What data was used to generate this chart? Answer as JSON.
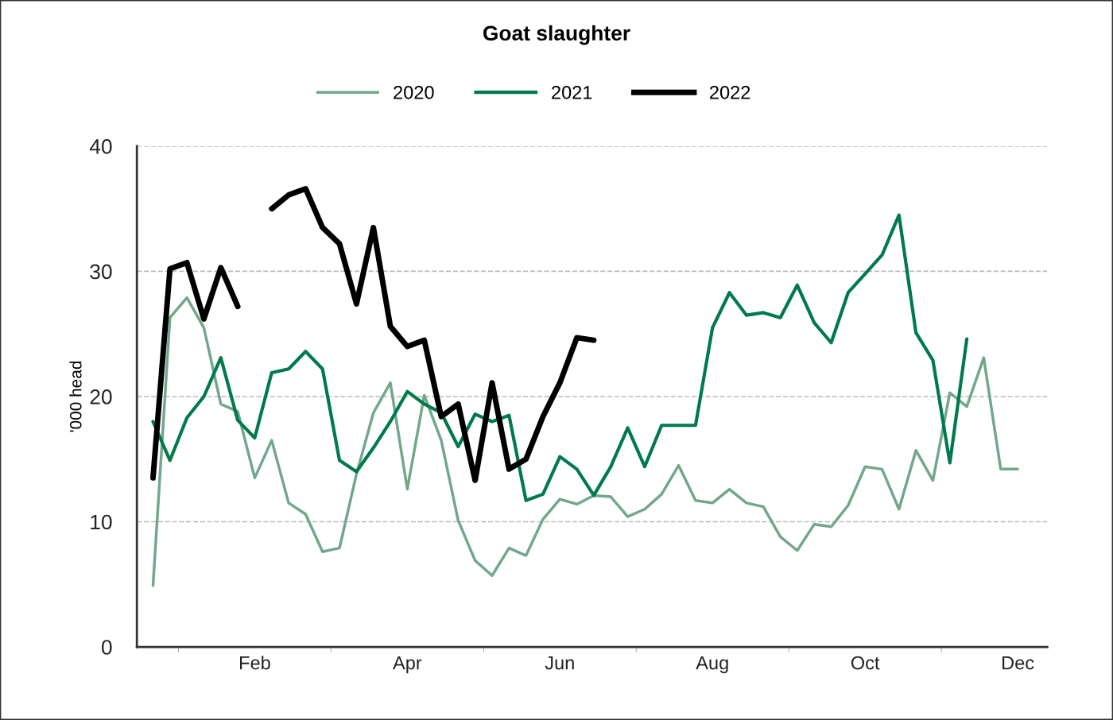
{
  "chart_data": {
    "type": "line",
    "title": "Goat slaughter",
    "ylabel": "'000 head",
    "categories": [
      null,
      null,
      null,
      null,
      null,
      null,
      "Feb",
      null,
      null,
      null,
      null,
      null,
      null,
      null,
      null,
      "Apr",
      null,
      null,
      null,
      null,
      null,
      null,
      null,
      null,
      "Jun",
      null,
      null,
      null,
      null,
      null,
      null,
      null,
      null,
      "Aug",
      null,
      null,
      null,
      null,
      null,
      null,
      null,
      null,
      "Oct",
      null,
      null,
      null,
      null,
      null,
      null,
      null,
      null,
      "Dec"
    ],
    "series": [
      {
        "name": "2020",
        "color": "#72a78c",
        "values": [
          4.9,
          26.3,
          27.9,
          25.5,
          19.4,
          18.8,
          13.5,
          16.5,
          11.5,
          10.6,
          7.6,
          7.9,
          13.8,
          18.7,
          21.1,
          12.6,
          20.1,
          16.5,
          10.1,
          6.9,
          5.7,
          7.9,
          7.3,
          10.2,
          11.8,
          11.4,
          12.1,
          12.0,
          10.4,
          11.0,
          12.2,
          14.5,
          11.7,
          11.5,
          12.6,
          11.5,
          11.2,
          8.8,
          7.7,
          9.8,
          9.6,
          11.3,
          14.4,
          14.2,
          11.0,
          15.7,
          13.3,
          20.3,
          19.2,
          23.1,
          14.2,
          14.2
        ]
      },
      {
        "name": "2021",
        "color": "#007a4d",
        "values": [
          18.0,
          14.9,
          18.3,
          20.0,
          23.1,
          18.1,
          16.7,
          21.9,
          22.2,
          23.6,
          22.2,
          14.9,
          14.0,
          15.9,
          18.0,
          20.4,
          19.4,
          18.7,
          16.0,
          18.6,
          18.0,
          18.5,
          11.7,
          12.2,
          15.2,
          14.2,
          12.1,
          14.4,
          17.5,
          14.4,
          17.7,
          17.7,
          17.7,
          25.5,
          28.3,
          26.5,
          26.7,
          26.3,
          28.9,
          25.9,
          24.3,
          28.3,
          29.8,
          31.3,
          34.5,
          25.1,
          22.9,
          14.7,
          24.6,
          null,
          null,
          null
        ]
      },
      {
        "name": "2022",
        "color": "#000000",
        "values": [
          13.5,
          30.2,
          30.7,
          26.2,
          30.3,
          27.2,
          null,
          35.0,
          36.1,
          36.6,
          33.5,
          32.2,
          27.4,
          33.5,
          25.6,
          24.0,
          24.5,
          18.4,
          19.4,
          13.3,
          21.1,
          14.2,
          15.0,
          18.4,
          21.1,
          24.7,
          24.5,
          null,
          null,
          null,
          null,
          null,
          null,
          null,
          null,
          null,
          null,
          null,
          null,
          null,
          null,
          null,
          null,
          null,
          null,
          null,
          null,
          null,
          null,
          null,
          null,
          null
        ]
      }
    ],
    "ylim": [
      0,
      40
    ],
    "yticks": [
      0,
      10,
      20,
      30,
      40
    ],
    "grid": "y",
    "legend": "top",
    "marker": "none",
    "line_style": "solid"
  }
}
